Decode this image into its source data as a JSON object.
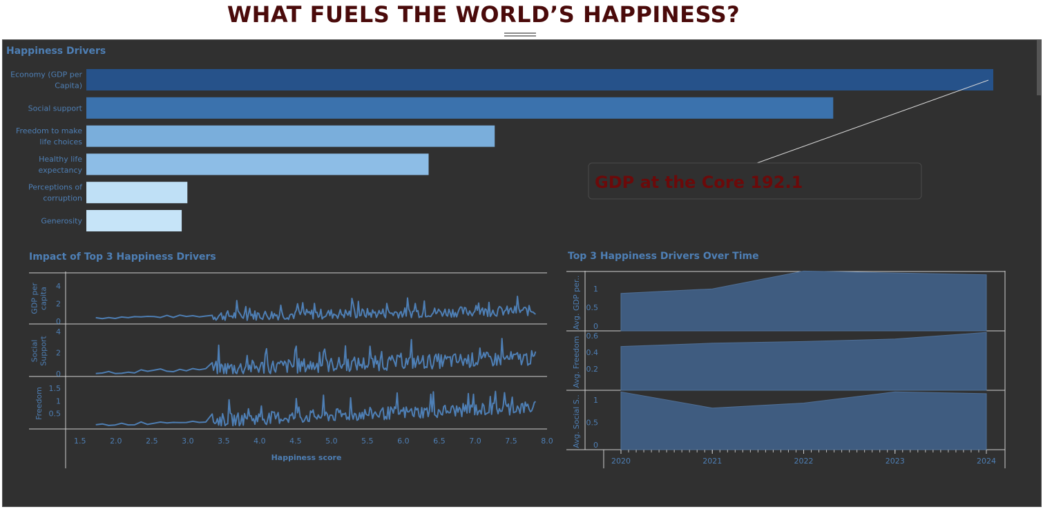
{
  "page": {
    "title": "WHAT FUELS THE WORLD’S HAPPINESS?"
  },
  "drivers": {
    "title": "Happiness Drivers",
    "annotation": "GDP at the Core 192.1"
  },
  "impact": {
    "title": "Impact of Top 3 Happiness Drivers"
  },
  "over_time": {
    "title": "Top 3 Happiness Drivers Over Time"
  },
  "colors": {
    "background": "#303030",
    "text": "#4e7fb5",
    "line": "#4e7fb5",
    "area": "#3f5c80",
    "annotation": "#6b0a0a",
    "bars": [
      "#26528a",
      "#3b72ad",
      "#7aaedb",
      "#8dbde6",
      "#bfe0f6",
      "#c6e4f8"
    ]
  },
  "chart_data": [
    {
      "type": "bar",
      "orientation": "horizontal",
      "title": "Happiness Drivers",
      "categories": [
        "Economy (GDP per Capita)",
        "Social support",
        "Freedom to make life choices",
        "Healthy life expectancy",
        "Perceptions of corruption",
        "Generosity"
      ],
      "category_lines": [
        [
          "Economy (GDP per",
          "Capita)"
        ],
        [
          "Social support"
        ],
        [
          "Freedom to make",
          "life choices"
        ],
        [
          "Healthy life",
          "expectancy"
        ],
        [
          "Perceptions of",
          "corruption"
        ],
        [
          "Generosity"
        ]
      ],
      "values": [
        192.1,
        158.2,
        86.5,
        72.5,
        21.4,
        20.2
      ],
      "annotations": [
        {
          "text": "GDP at the Core 192.1",
          "target": "Economy (GDP per Capita)"
        }
      ]
    },
    {
      "type": "line",
      "title": "Impact of Top 3 Happiness Drivers",
      "xlabel": "Happiness score",
      "xlim": [
        1.3,
        8.0
      ],
      "xticks": [
        "1.5",
        "2.0",
        "2.5",
        "3.0",
        "3.5",
        "4.0",
        "4.5",
        "5.0",
        "5.5",
        "6.0",
        "6.5",
        "7.0",
        "7.5",
        "8.0"
      ],
      "panels": [
        {
          "name": "GDP per capita",
          "label_lines": [
            "GDP per",
            "capita"
          ],
          "ylim": [
            0,
            5
          ],
          "yticks": [
            "0",
            "2",
            "4"
          ],
          "trend": [
            0.4,
            1.2
          ],
          "noise": 0.9
        },
        {
          "name": "Social Support",
          "label_lines": [
            "Social",
            "Support"
          ],
          "ylim": [
            0,
            4.2
          ],
          "yticks": [
            "0",
            "2",
            "4"
          ],
          "trend": [
            0.1,
            1.5
          ],
          "noise": 1.1
        },
        {
          "name": "Freedom",
          "label_lines": [
            "Freedom"
          ],
          "ylim": [
            0,
            1.75
          ],
          "yticks": [
            "0.5",
            "1",
            "1.5"
          ],
          "trend": [
            0.05,
            0.75
          ],
          "noise": 0.4
        }
      ]
    },
    {
      "type": "area",
      "title": "Top 3 Happiness Drivers Over Time",
      "x": [
        2020,
        2021,
        2022,
        2023,
        2024
      ],
      "xticks": [
        "2020",
        "2021",
        "2022",
        "2023",
        "2024"
      ],
      "series": [
        {
          "name": "Avg. GDP per..",
          "values": [
            0.88,
            1.0,
            1.48,
            1.43,
            1.38
          ],
          "ylim": [
            0,
            1.45
          ],
          "yticks": [
            "0",
            "0.5",
            "1"
          ]
        },
        {
          "name": "Avg. Freedom",
          "values": [
            0.47,
            0.51,
            0.53,
            0.56,
            0.64
          ],
          "ylim": [
            0,
            0.65
          ],
          "yticks": [
            "0.2",
            "0.4",
            "0.6"
          ]
        },
        {
          "name": "Avg. Social S..",
          "values": [
            1.18,
            0.82,
            0.93,
            1.18,
            1.14
          ],
          "ylim": [
            0,
            1.2
          ],
          "yticks": [
            "0",
            "0.5",
            "1"
          ]
        }
      ]
    }
  ]
}
